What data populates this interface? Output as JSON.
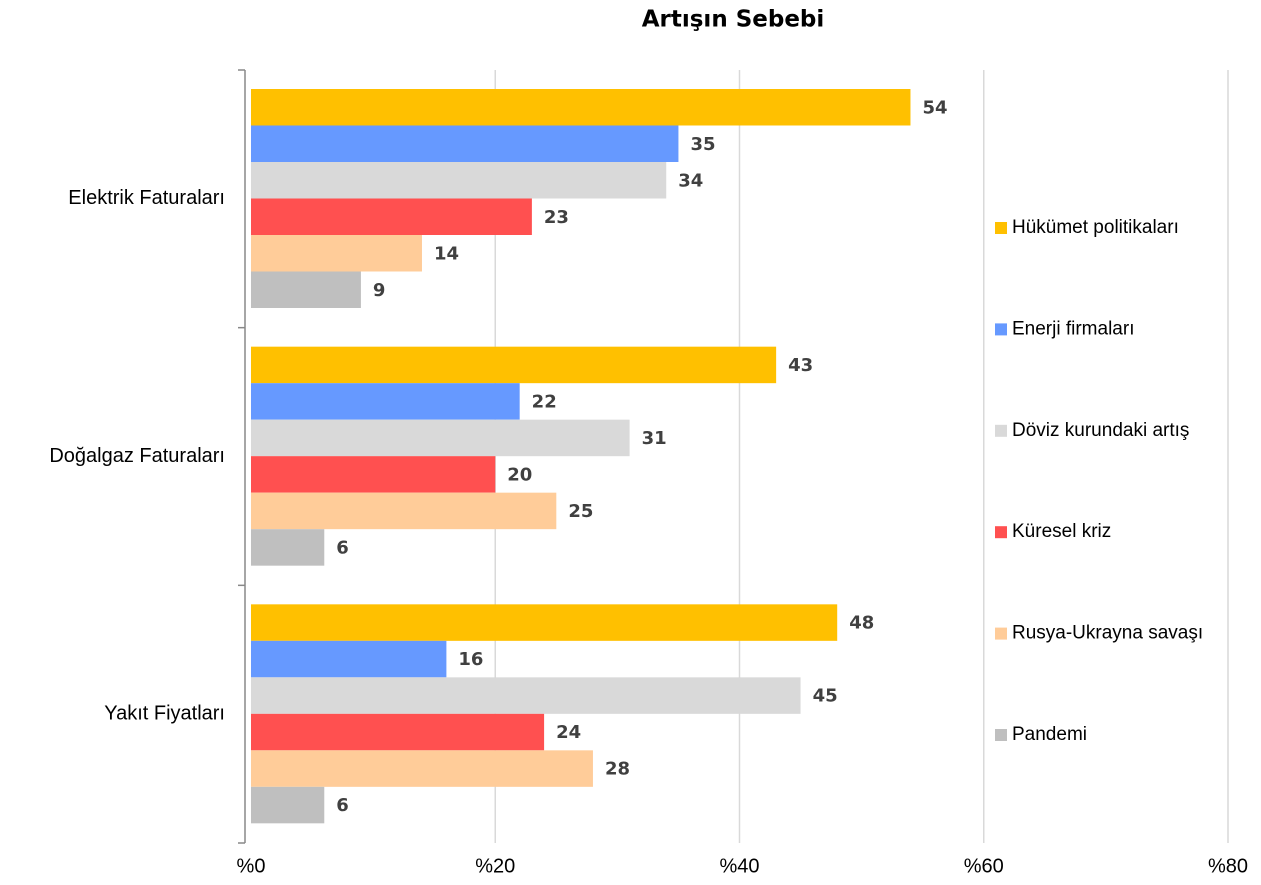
{
  "chart_data": {
    "type": "hbar",
    "title": "Artışın Sebebi",
    "categories": [
      "Elektrik Faturaları",
      "Doğalgaz Faturaları",
      "Yakıt Fiyatları"
    ],
    "series": [
      {
        "name": "Hükümet politikaları",
        "color": "#FFC000",
        "values": [
          54,
          43,
          48
        ]
      },
      {
        "name": "Enerji firmaları",
        "color": "#6699FF",
        "values": [
          35,
          22,
          16
        ]
      },
      {
        "name": "Döviz kurundaki artış",
        "color": "#D9D9D9",
        "values": [
          34,
          31,
          45
        ]
      },
      {
        "name": "Küresel kriz",
        "color": "#FF5050",
        "values": [
          23,
          20,
          24
        ]
      },
      {
        "name": "Rusya-Ukrayna savaşı",
        "color": "#FFCC99",
        "values": [
          14,
          25,
          28
        ]
      },
      {
        "name": "Pandemi",
        "color": "#BFBFBF",
        "values": [
          9,
          6,
          6
        ]
      }
    ],
    "xlim": [
      0,
      80
    ],
    "xticks": [
      {
        "value": 0,
        "label": "%0"
      },
      {
        "value": 20,
        "label": "%20"
      },
      {
        "value": 40,
        "label": "%40"
      },
      {
        "value": 60,
        "label": "%60"
      },
      {
        "value": 80,
        "label": "%80"
      }
    ],
    "grid": true,
    "legend": "right"
  }
}
